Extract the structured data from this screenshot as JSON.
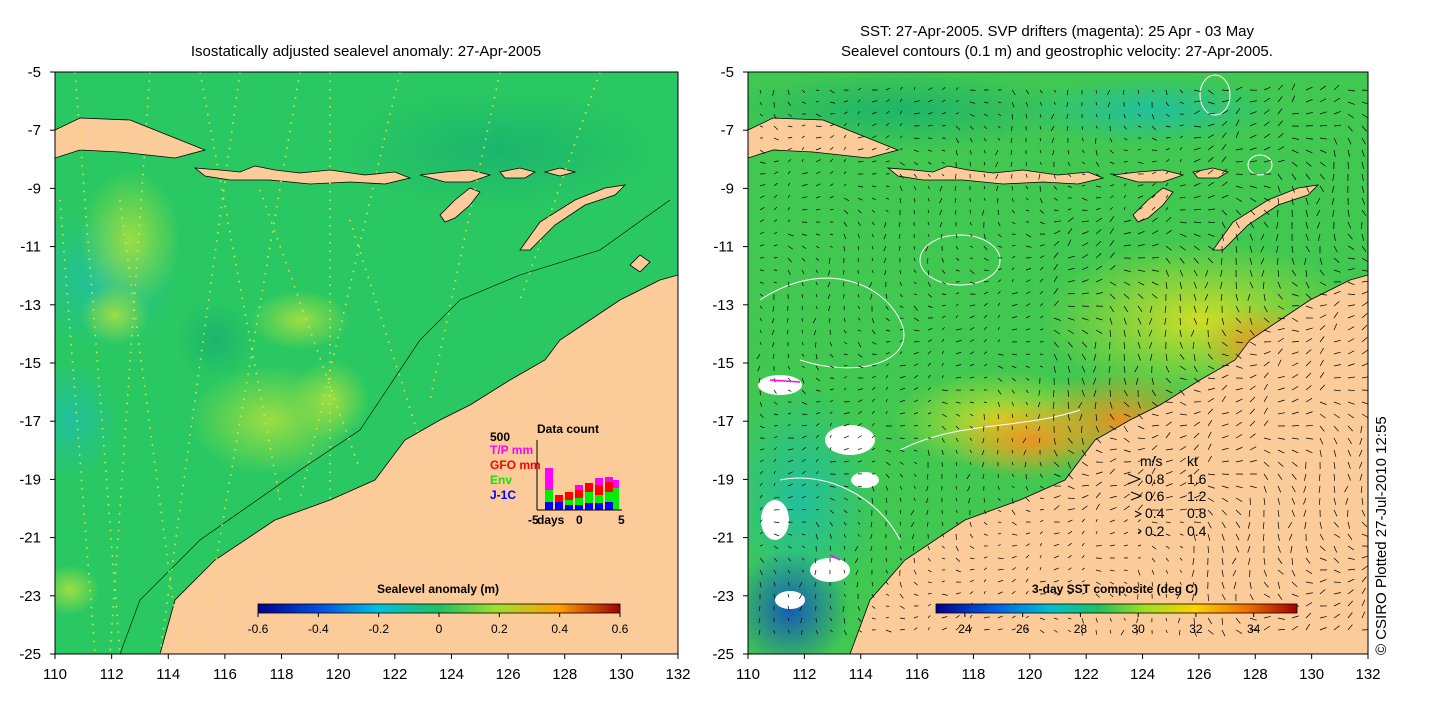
{
  "left_panel": {
    "title": "Isostatically adjusted sealevel anomaly: 27-Apr-2005",
    "colorbar": {
      "label": "Sealevel anomaly (m)",
      "ticks": [
        "-0.6",
        "-0.4",
        "-0.2",
        "0",
        "0.2",
        "0.4",
        "0.6"
      ],
      "range": [
        -0.6,
        0.6
      ]
    },
    "inset": {
      "title": "Data count",
      "ymax_label": "500",
      "legend": [
        {
          "label": "T/P mm",
          "color": "#ff00ff"
        },
        {
          "label": "GFO mm",
          "color": "#ff0000"
        },
        {
          "label": "Env",
          "color": "#00ee00"
        },
        {
          "label": "J-1C",
          "color": "#0000ff"
        }
      ],
      "xlabels": [
        "-5",
        "days",
        "0",
        "5"
      ]
    }
  },
  "right_panel": {
    "title_line1": "SST: 27-Apr-2005. SVP drifters (magenta): 25 Apr - 03 May",
    "title_line2": "Sealevel contours (0.1 m) and geostrophic velocity: 27-Apr-2005.",
    "colorbar": {
      "label": "3-day SST composite (deg C)",
      "ticks": [
        "24",
        "26",
        "28",
        "30",
        "32",
        "34"
      ],
      "range": [
        23,
        35.5
      ]
    },
    "velocity_key": {
      "header_ms": "m/s",
      "header_kt": "kt",
      "rows": [
        {
          "ms": "0.8",
          "kt": "1.6"
        },
        {
          "ms": "0.6",
          "kt": "1.2"
        },
        {
          "ms": "0.4",
          "kt": "0.8"
        },
        {
          "ms": "0.2",
          "kt": "0.4"
        }
      ]
    }
  },
  "axes": {
    "x_ticks": [
      "110",
      "112",
      "114",
      "116",
      "118",
      "120",
      "122",
      "124",
      "126",
      "128",
      "130",
      "132"
    ],
    "y_ticks": [
      "-5",
      "-7",
      "-9",
      "-11",
      "-13",
      "-15",
      "-17",
      "-19",
      "-21",
      "-23",
      "-25"
    ],
    "lon_range": [
      110,
      132
    ],
    "lat_range": [
      -25,
      -5
    ]
  },
  "credit": "© CSIRO Plotted 27-Jul-2010 12:55",
  "colors": {
    "land": "#fbcb9a",
    "sea_base": "#2ac862",
    "sst_warm": "#f0a020",
    "coast": "#000000"
  }
}
